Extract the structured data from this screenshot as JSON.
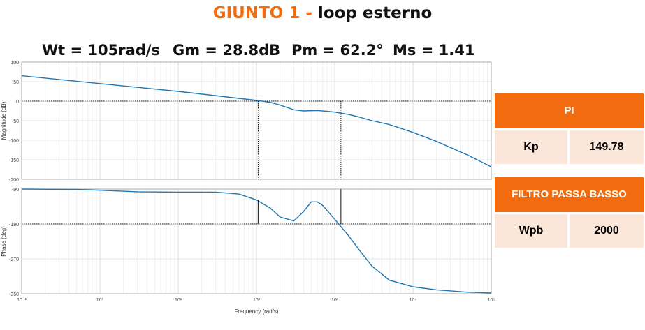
{
  "title": {
    "accent": "GIUNTO 1 -",
    "rest": "loop esterno"
  },
  "metrics": {
    "wt": "Wt = 105rad/s",
    "gm": "Gm = 28.8dB",
    "pm": "Pm = 62.2°",
    "ms": "Ms = 1.41"
  },
  "table": {
    "pi_header": "PI",
    "kp_label": "Kp",
    "kp_value": "149.78",
    "filter_header": "FILTRO PASSA BASSO",
    "wpb_label": "Wpb",
    "wpb_value": "2000"
  },
  "colors": {
    "accent": "#f26b0f",
    "table_cell": "#fbe6da",
    "curve": "#1f77b4"
  },
  "chart_data": [
    {
      "type": "line",
      "xlabel": "",
      "ylabel": "Magnitude (dB)",
      "xscale": "log",
      "xlim": [
        0.1,
        100000
      ],
      "ylim": [
        -200,
        100
      ],
      "yticks": [
        "100",
        "50",
        "0",
        "-50",
        "-100",
        "-150",
        "-200"
      ],
      "grid": true,
      "x": [
        0.1,
        1,
        10,
        100,
        150,
        200,
        300,
        400,
        600,
        800,
        1000,
        1500,
        2000,
        3000,
        5000,
        10000,
        20000,
        50000,
        100000
      ],
      "y": [
        65,
        45,
        25,
        2,
        -3,
        -10,
        -22,
        -25,
        -24,
        -26,
        -28,
        -34,
        -40,
        -50,
        -60,
        -80,
        -103,
        -138,
        -168
      ],
      "marker_lines": [
        {
          "x": 105,
          "from": 0,
          "to": -200
        },
        {
          "x": 1200,
          "from": 0,
          "to": -200
        }
      ]
    },
    {
      "type": "line",
      "xlabel": "Frequency  (rad/s)",
      "ylabel": "Phase (deg)",
      "xscale": "log",
      "xlim": [
        0.1,
        100000
      ],
      "ylim": [
        -360,
        -90
      ],
      "yticks": [
        "-90",
        "-180",
        "-270",
        "-360"
      ],
      "xticks": [
        "10⁻¹",
        "10⁰",
        "10¹",
        "10²",
        "10³",
        "10⁴",
        "10⁵"
      ],
      "grid": true,
      "x": [
        0.1,
        0.5,
        1,
        3,
        10,
        30,
        60,
        100,
        150,
        200,
        300,
        400,
        500,
        600,
        700,
        1000,
        1500,
        2000,
        3000,
        5000,
        10000,
        20000,
        50000,
        100000
      ],
      "y": [
        -90,
        -91,
        -93,
        -97,
        -98,
        -98,
        -103,
        -118,
        -139,
        -162,
        -172,
        -148,
        -123,
        -123,
        -132,
        -168,
        -210,
        -244,
        -289,
        -325,
        -342,
        -350,
        -356,
        -358
      ],
      "marker_lines": [
        {
          "x": 105,
          "from": -117.8,
          "to": -180
        },
        {
          "x": 1200,
          "from": -90,
          "to": -180
        }
      ]
    }
  ]
}
